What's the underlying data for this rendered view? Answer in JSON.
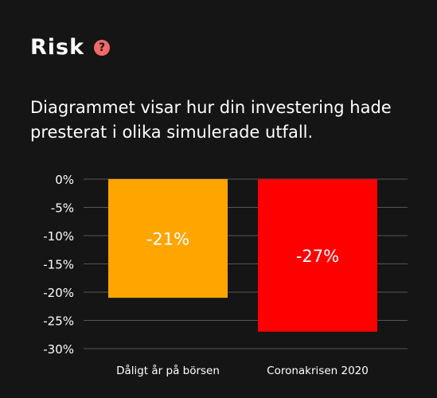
{
  "header": {
    "title": "Risk",
    "help_icon": "question-circle-icon",
    "help_glyph": "?"
  },
  "description": "Diagrammet visar hur din investering hade presterat i olika simulerade utfall.",
  "colors": {
    "background": "#151515",
    "help_icon": "#f06a6a",
    "grid": "#555555"
  },
  "chart_data": {
    "type": "bar",
    "categories": [
      "Dåligt år på börsen",
      "Coronakrisen 2020"
    ],
    "values": [
      -21,
      -27
    ],
    "data_labels": [
      "-21%",
      "-27%"
    ],
    "colors": [
      "#ffa500",
      "#ff0000"
    ],
    "ylim": [
      -30,
      0
    ],
    "yticks": [
      0,
      -5,
      -10,
      -15,
      -20,
      -25,
      -30
    ],
    "ytick_labels": [
      "0%",
      "-5%",
      "-10%",
      "-15%",
      "-20%",
      "-25%",
      "-30%"
    ],
    "grid": true,
    "title": "",
    "xlabel": "",
    "ylabel": ""
  }
}
